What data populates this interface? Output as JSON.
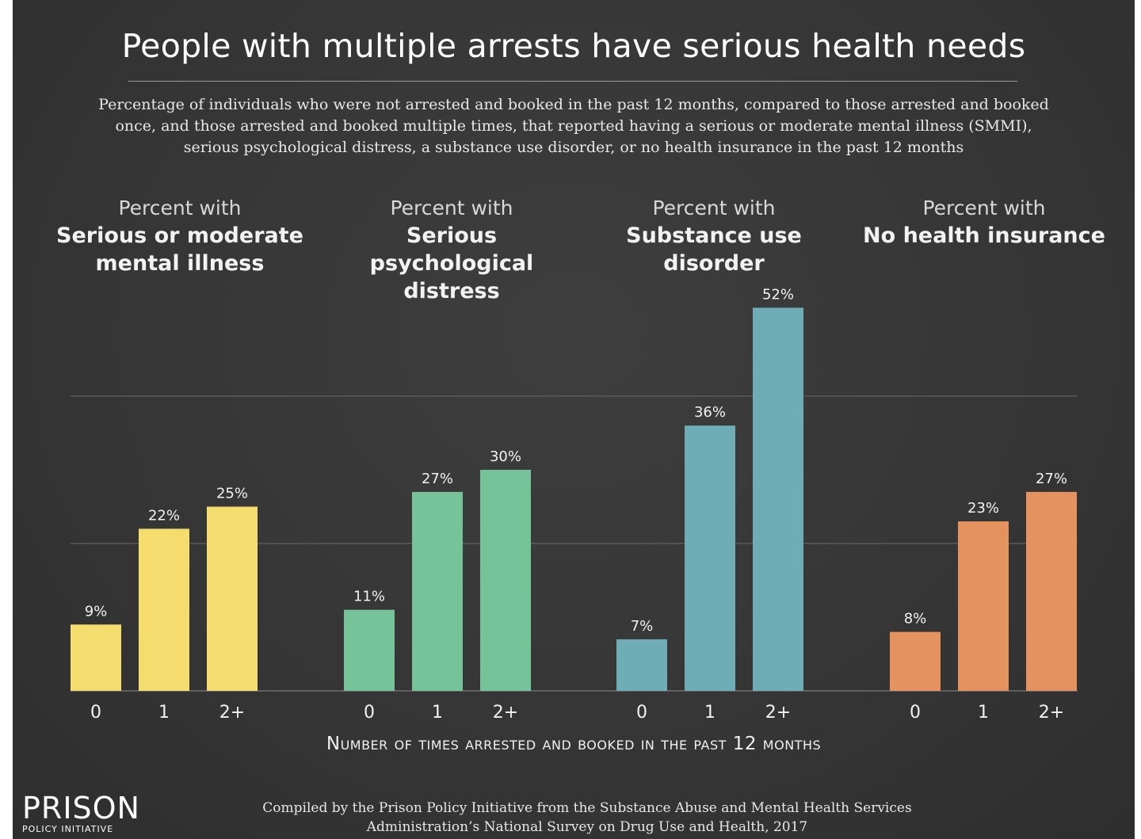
{
  "title": "People with multiple arrests have serious health needs",
  "subtitle": "Percentage of individuals who were not arrested and booked in the past 12 months, compared to those arrested and booked once, and those arrested and booked multiple times, that reported having a serious or moderate mental illness (SMMI), serious psychological distress, a substance use disorder, or no health insurance in the past 12 months",
  "panels": [
    {
      "prefix": "Percent with",
      "name_line1": "Serious or moderate",
      "name_line2": "mental illness"
    },
    {
      "prefix": "Percent with",
      "name_line1": "Serious psychological",
      "name_line2": "distress"
    },
    {
      "prefix": "Percent with",
      "name_line1": "Substance use",
      "name_line2": "disorder"
    },
    {
      "prefix": "Percent with",
      "name_line1": "No health insurance",
      "name_line2": ""
    }
  ],
  "x_axis_title": "Number of times arrested and booked in the past 12 months",
  "logo": {
    "top": "PRISON",
    "bottom": "POLICY INITIATIVE"
  },
  "source": "Compiled by the Prison Policy Initiative from the Substance Abuse and Mental Health Services Administration’s National Survey on Drug Use and Health, 2017",
  "chart_data": {
    "type": "bar",
    "categories": [
      "0",
      "1",
      "2+"
    ],
    "ylim": [
      0,
      60
    ],
    "grid": true,
    "value_suffix": "%",
    "groups": [
      {
        "name": "Serious or moderate mental illness",
        "color": "#f5dc6e",
        "values": [
          9,
          22,
          25
        ]
      },
      {
        "name": "Serious psychological distress",
        "color": "#76c39a",
        "values": [
          11,
          27,
          30
        ]
      },
      {
        "name": "Substance use disorder",
        "color": "#6fadb6",
        "values": [
          7,
          36,
          52
        ]
      },
      {
        "name": "No health insurance",
        "color": "#e5935e",
        "values": [
          8,
          23,
          27
        ]
      }
    ]
  }
}
